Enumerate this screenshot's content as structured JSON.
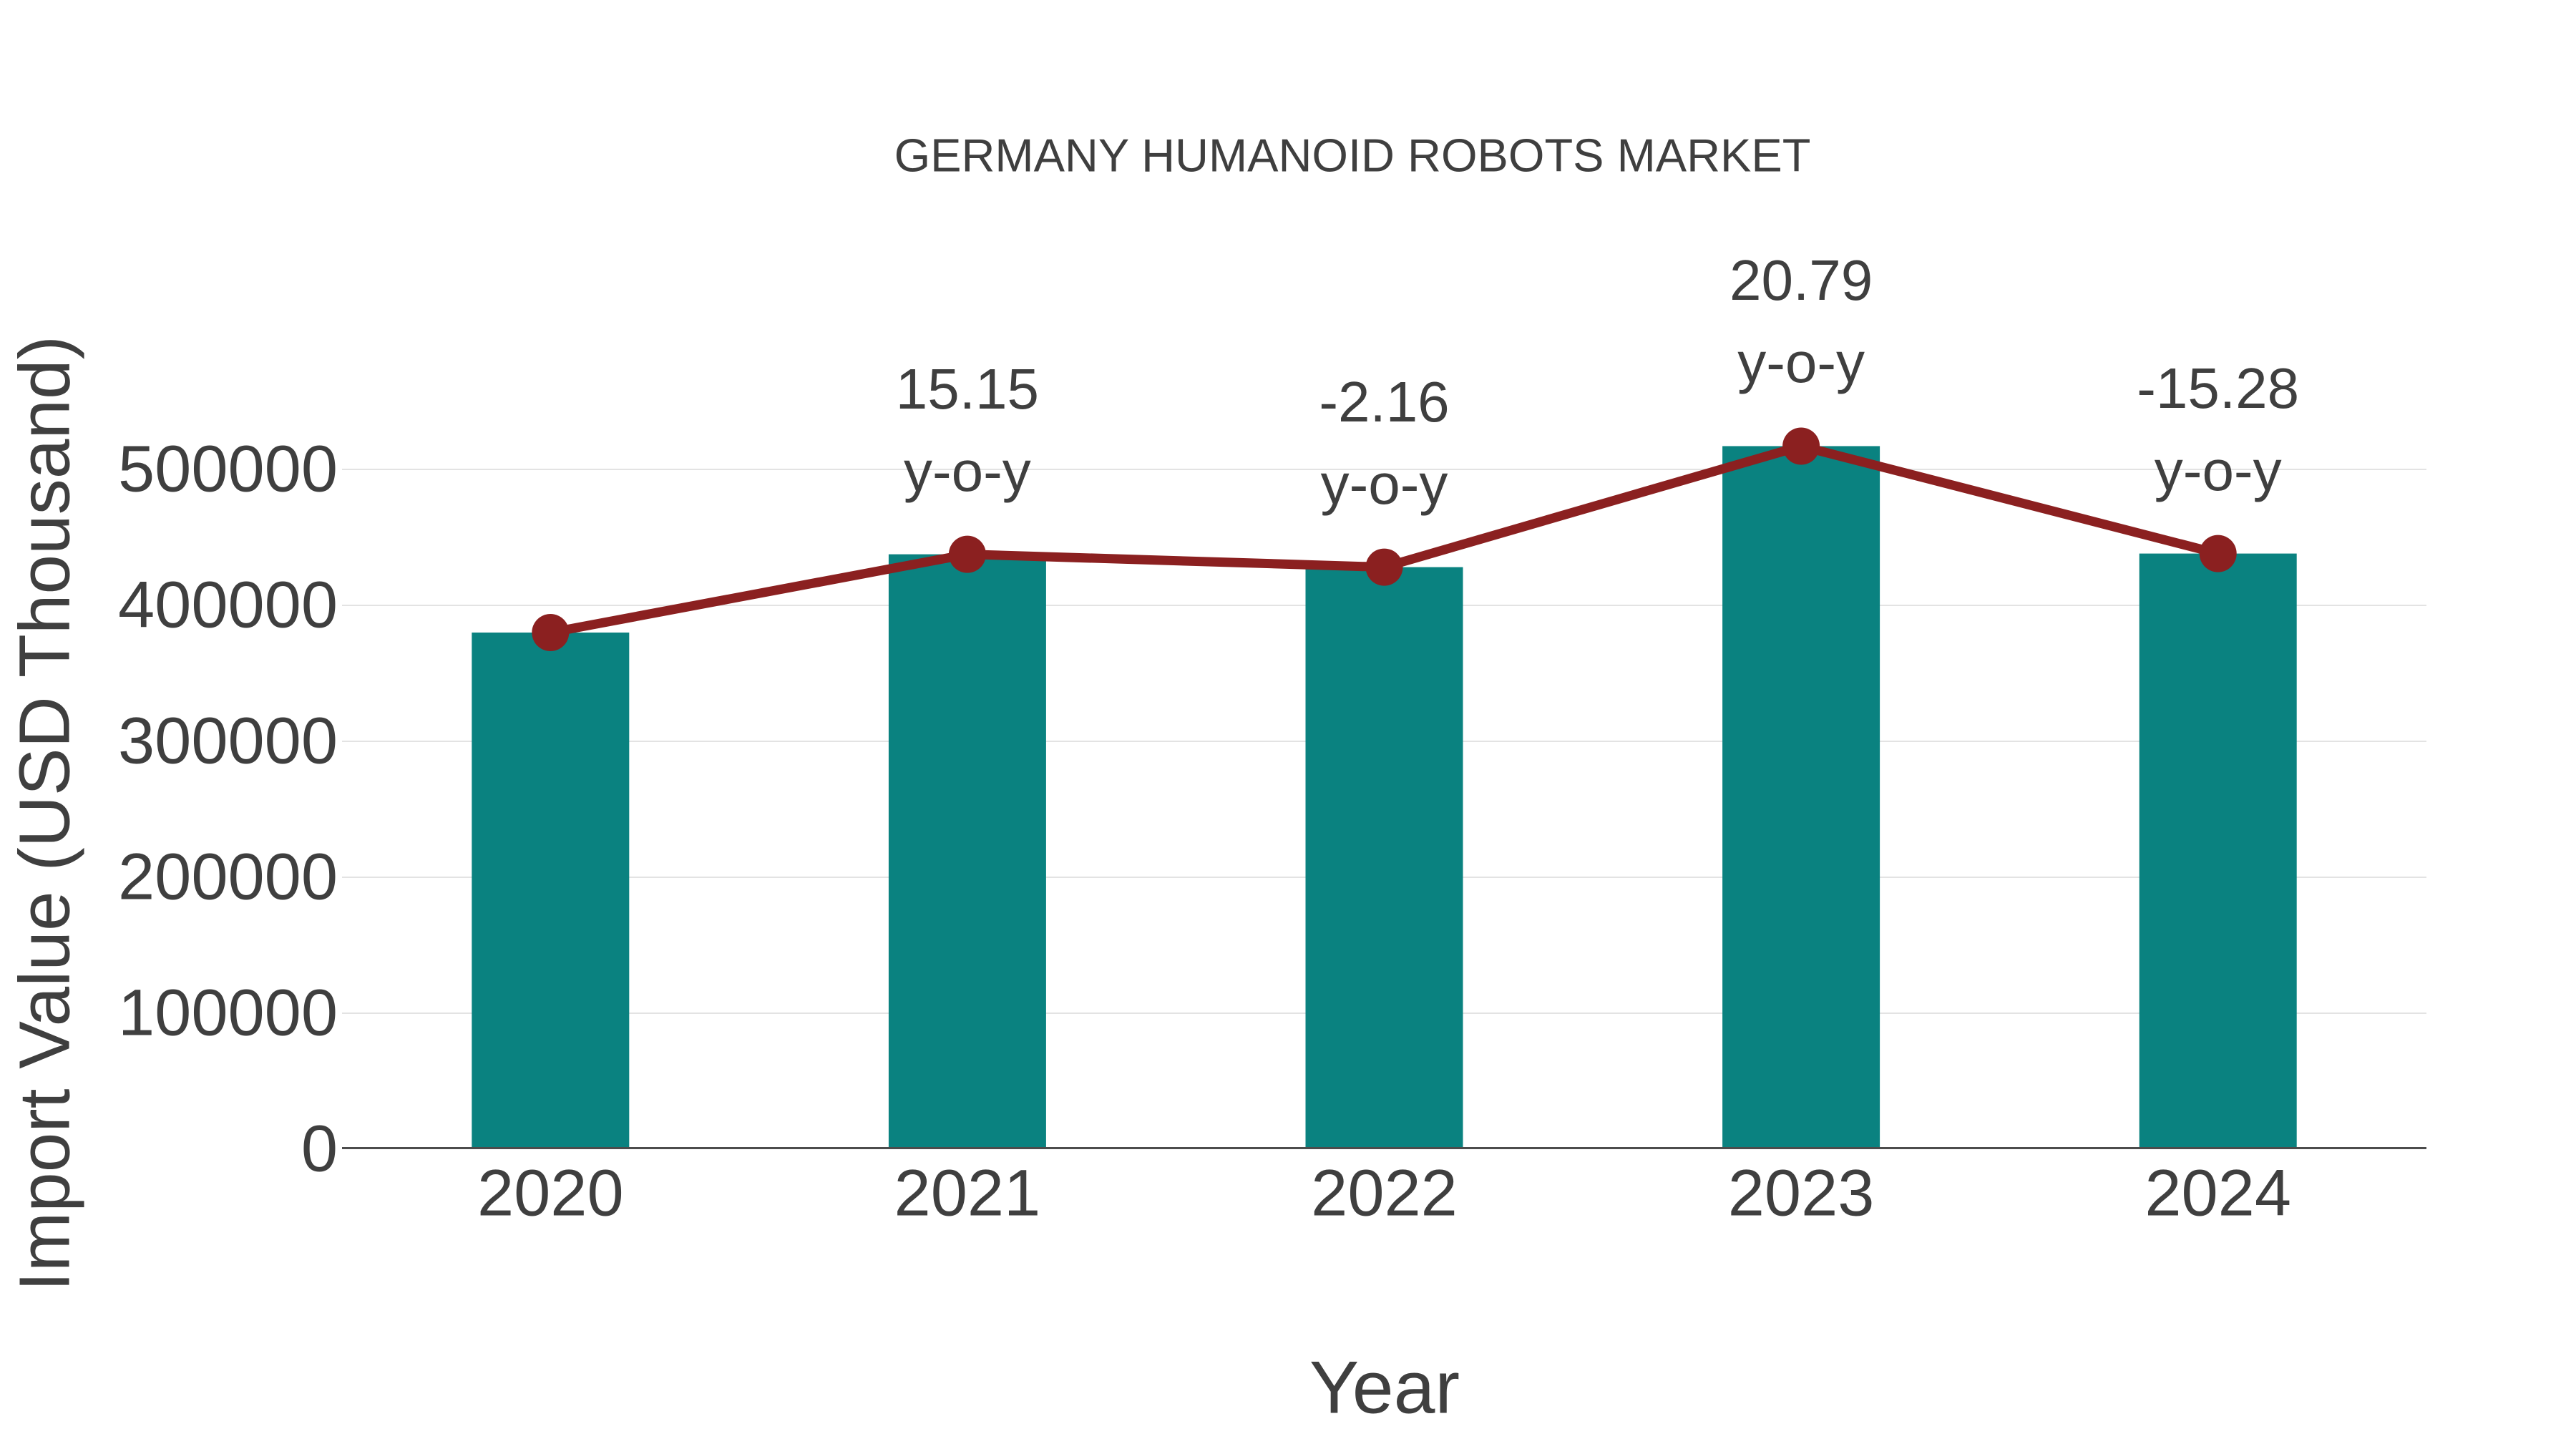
{
  "page": {
    "background": "#ffffff"
  },
  "chart_data": {
    "type": "bar",
    "title": "GERMANY HUMANOID ROBOTS MARKET",
    "xlabel": "Year",
    "ylabel": "Import Value (USD Thousand)",
    "categories": [
      "2020",
      "2021",
      "2022",
      "2023",
      "2024"
    ],
    "series": [
      {
        "name": "Import Value",
        "type": "bar",
        "color": "#0a8280",
        "values": [
          380000,
          437570,
          428119,
          517127,
          438110
        ]
      },
      {
        "name": "y-o-y trend",
        "type": "line",
        "color": "#8b2020",
        "values": [
          380000,
          437570,
          428119,
          517127,
          438110
        ]
      }
    ],
    "yoy_percent": [
      null,
      15.15,
      -2.16,
      20.79,
      -15.28
    ],
    "annotations": [
      {
        "category": "2021",
        "line1": "15.15",
        "line2": "y-o-y"
      },
      {
        "category": "2022",
        "line1": "-2.16",
        "line2": "y-o-y"
      },
      {
        "category": "2023",
        "line1": "20.79",
        "line2": "y-o-y"
      },
      {
        "category": "2024",
        "line1": "-15.28",
        "line2": "y-o-y"
      }
    ],
    "yticks": [
      0,
      100000,
      200000,
      300000,
      400000,
      500000
    ],
    "ylim": [
      0,
      550000
    ],
    "grid": true,
    "legend_position": "none",
    "colors": {
      "bar": "#0a8280",
      "line": "#8b2020",
      "marker": "#8b2020",
      "grid": "#e3e3e3",
      "axis": "#4c4c4c",
      "text": "#3f3f3f"
    }
  }
}
